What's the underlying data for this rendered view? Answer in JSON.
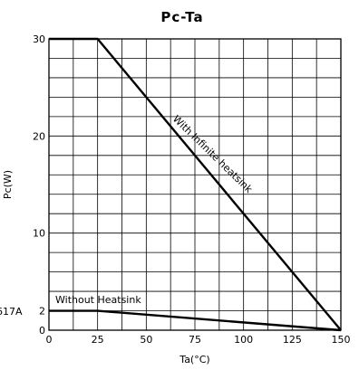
{
  "chart_data": {
    "type": "line",
    "title": "Pc-Ta",
    "xlabel": "Ta(°C)",
    "ylabel": "Pc(W)",
    "xlim": [
      0,
      150
    ],
    "ylim": [
      0,
      30
    ],
    "x_ticks": [
      "0",
      "25",
      "50",
      "75",
      "100",
      "125",
      "150"
    ],
    "y_ticks": [
      "0",
      "2",
      "10",
      "20",
      "30"
    ],
    "grid": true,
    "side_label": "617A",
    "series": [
      {
        "name": "With Infinite heatsink",
        "x": [
          0,
          25,
          150
        ],
        "y": [
          30,
          30,
          0
        ]
      },
      {
        "name": "Without Heatsink",
        "x": [
          0,
          25,
          150
        ],
        "y": [
          2,
          2,
          0
        ]
      }
    ]
  }
}
